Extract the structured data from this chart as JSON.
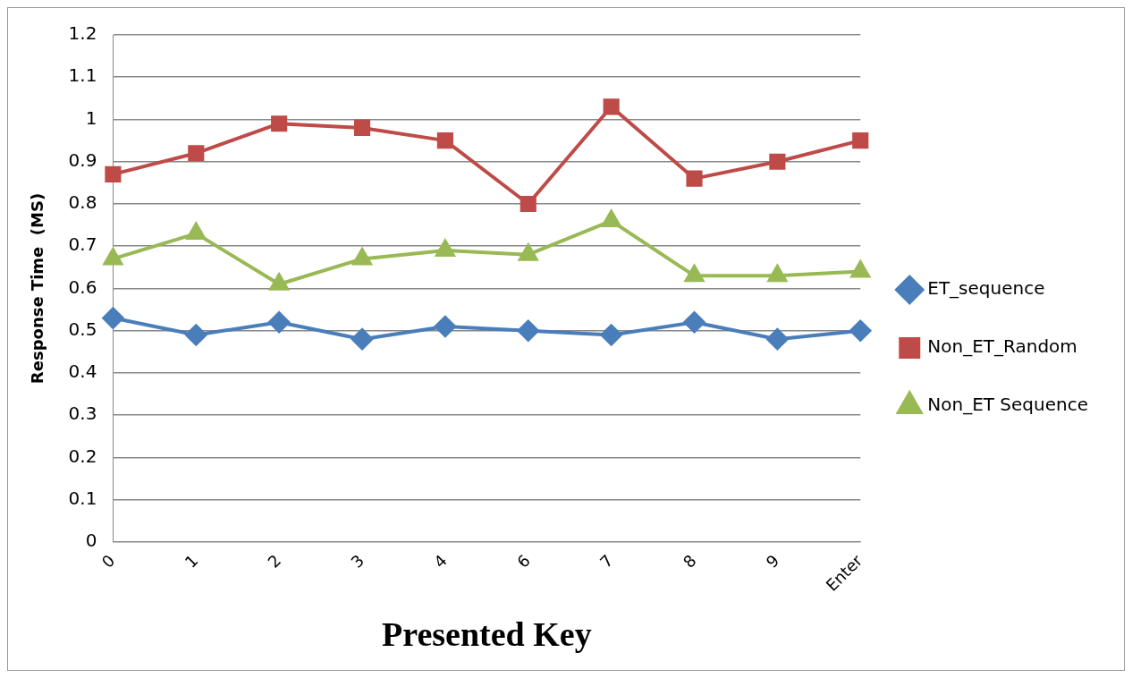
{
  "chart_data": {
    "type": "line",
    "xlabel": "Presented Key",
    "ylabel": "Response Time  (MS)",
    "categories": [
      "0",
      "1",
      "2",
      "3",
      "4",
      "6",
      "7",
      "8",
      "9",
      "Enter"
    ],
    "series": [
      {
        "name": "ET_sequence",
        "color": "#4a7ebb",
        "marker": "diamond",
        "values": [
          0.53,
          0.49,
          0.52,
          0.48,
          0.51,
          0.5,
          0.49,
          0.52,
          0.48,
          0.5
        ]
      },
      {
        "name": "Non_ET_Random",
        "color": "#be4b48",
        "marker": "square",
        "values": [
          0.87,
          0.92,
          0.99,
          0.98,
          0.95,
          0.8,
          1.03,
          0.86,
          0.9,
          0.95
        ]
      },
      {
        "name": "Non_ET Sequence",
        "color": "#98b954",
        "marker": "triangle",
        "values": [
          0.67,
          0.73,
          0.61,
          0.67,
          0.69,
          0.68,
          0.76,
          0.63,
          0.63,
          0.64
        ]
      }
    ],
    "ylim": [
      0,
      1.2
    ],
    "yticks": [
      0,
      0.1,
      0.2,
      0.3,
      0.4,
      0.5,
      0.6,
      0.7,
      0.8,
      0.9,
      1,
      1.1,
      1.2
    ],
    "grid": "y",
    "legend": "right",
    "line_style": "solid"
  }
}
